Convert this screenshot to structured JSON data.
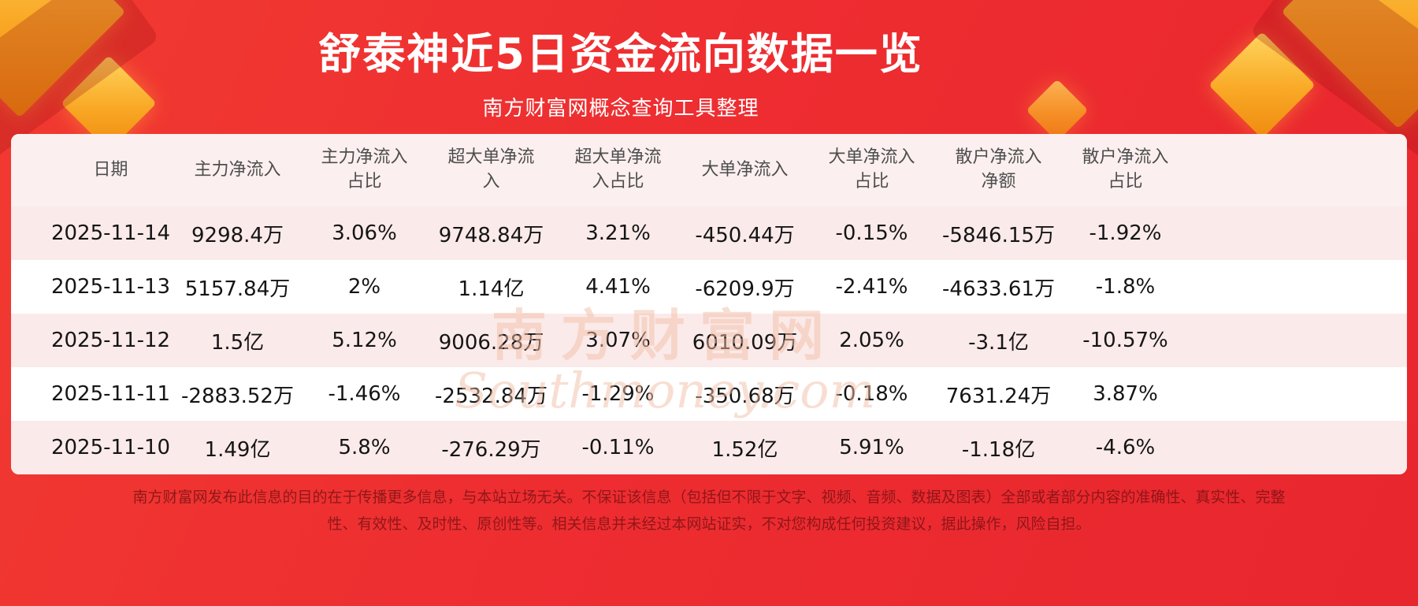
{
  "header": {
    "title": "舒泰神近5日资金流向数据一览",
    "subtitle": "南方财富网概念查询工具整理"
  },
  "chart_data": {
    "type": "table",
    "title": "舒泰神近5日资金流向数据一览",
    "columns": [
      "日期",
      "主力净流入",
      "主力净流入占比",
      "超大单净流入",
      "超大单净流入占比",
      "大单净流入",
      "大单净流入占比",
      "散户净流入净额",
      "散户净流入占比"
    ],
    "rows": [
      [
        "2025-11-14",
        "9298.4万",
        "3.06%",
        "9748.84万",
        "3.21%",
        "-450.44万",
        "-0.15%",
        "-5846.15万",
        "-1.92%"
      ],
      [
        "2025-11-13",
        "5157.84万",
        "2%",
        "1.14亿",
        "4.41%",
        "-6209.9万",
        "-2.41%",
        "-4633.61万",
        "-1.8%"
      ],
      [
        "2025-11-12",
        "1.5亿",
        "5.12%",
        "9006.28万",
        "3.07%",
        "6010.09万",
        "2.05%",
        "-3.1亿",
        "-10.57%"
      ],
      [
        "2025-11-11",
        "-2883.52万",
        "-1.46%",
        "-2532.84万",
        "-1.29%",
        "-350.68万",
        "-0.18%",
        "7631.24万",
        "3.87%"
      ],
      [
        "2025-11-10",
        "1.49亿",
        "5.8%",
        "-276.29万",
        "-0.11%",
        "1.52亿",
        "5.91%",
        "-1.18亿",
        "-4.6%"
      ]
    ]
  },
  "watermark": {
    "cn": "南方财富网",
    "en": "Southmoney.com"
  },
  "footer": {
    "disclaimer": "南方财富网发布此信息的目的在于传播更多信息，与本站立场无关。不保证该信息（包括但不限于文字、视频、音频、数据及图表）全部或者部分内容的准确性、真实性、完整性、有效性、及时性、原创性等。相关信息并未经过本网站证实，不对您构成任何投资建议，据此操作，风险自担。"
  },
  "colors": {
    "background_red": "#ee2f31",
    "stripe_pink": "#fbeaea",
    "header_pink": "#fcefef",
    "gold_accent": "#f9a825",
    "title_text": "#ffffff",
    "table_text": "#151515",
    "disclaimer_text": "#8a1c1c"
  }
}
